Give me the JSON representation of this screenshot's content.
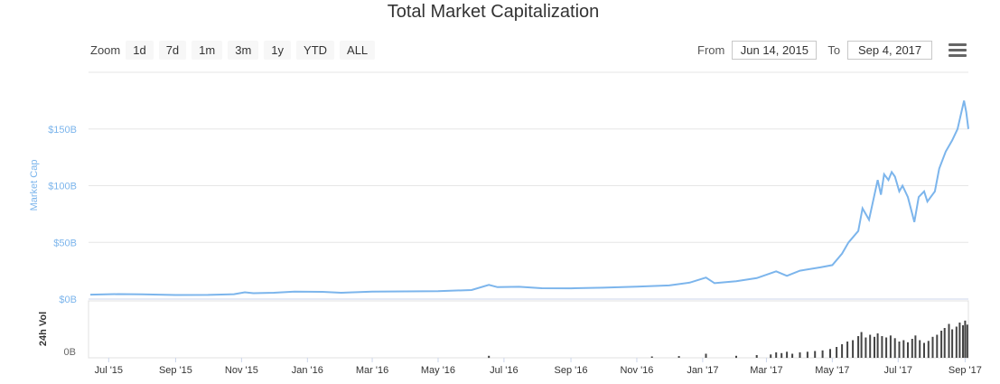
{
  "header": {
    "title": "Total Market Capitalization"
  },
  "zoom": {
    "label": "Zoom",
    "buttons": [
      "1d",
      "7d",
      "1m",
      "3m",
      "1y",
      "YTD",
      "ALL"
    ]
  },
  "range": {
    "from_label": "From",
    "from_value": "Jun 14, 2015",
    "to_label": "To",
    "to_value": "Sep 4, 2017"
  },
  "menu": {
    "icon": "hamburger-menu-icon"
  },
  "colors": {
    "line": "#7cb5ec",
    "volume": "#444444",
    "grid": "#e6e6e6",
    "yaxis_label": "#7cb5ec"
  },
  "chart_data": {
    "type": "line",
    "title": "Total Market Capitalization",
    "ylabel": "Market Cap",
    "ylim": [
      0,
      200
    ],
    "yticks": [
      {
        "value": 0,
        "label": "$0B"
      },
      {
        "value": 50,
        "label": "$50B"
      },
      {
        "value": 100,
        "label": "$100B"
      },
      {
        "value": 150,
        "label": "$150B"
      }
    ],
    "xlim": [
      "2015-06-14",
      "2017-09-04"
    ],
    "xticks": [
      {
        "date": "2015-07-01",
        "label": "Jul '15"
      },
      {
        "date": "2015-09-01",
        "label": "Sep '15"
      },
      {
        "date": "2015-11-01",
        "label": "Nov '15"
      },
      {
        "date": "2016-01-01",
        "label": "Jan '16"
      },
      {
        "date": "2016-03-01",
        "label": "Mar '16"
      },
      {
        "date": "2016-05-01",
        "label": "May '16"
      },
      {
        "date": "2016-07-01",
        "label": "Jul '16"
      },
      {
        "date": "2016-09-01",
        "label": "Sep '16"
      },
      {
        "date": "2016-11-01",
        "label": "Nov '16"
      },
      {
        "date": "2017-01-01",
        "label": "Jan '17"
      },
      {
        "date": "2017-03-01",
        "label": "Mar '17"
      },
      {
        "date": "2017-05-01",
        "label": "May '17"
      },
      {
        "date": "2017-07-01",
        "label": "Jul '17"
      },
      {
        "date": "2017-09-01",
        "label": "Sep '17"
      }
    ],
    "series": [
      {
        "values": [
          [
            "2015-06-14",
            3.9
          ],
          [
            "2015-07-10",
            4.4
          ],
          [
            "2015-08-01",
            4.2
          ],
          [
            "2015-09-01",
            3.6
          ],
          [
            "2015-10-01",
            3.7
          ],
          [
            "2015-10-25",
            4.3
          ],
          [
            "2015-11-04",
            6.0
          ],
          [
            "2015-11-12",
            5.2
          ],
          [
            "2015-12-01",
            5.6
          ],
          [
            "2015-12-20",
            6.5
          ],
          [
            "2016-01-15",
            6.4
          ],
          [
            "2016-02-01",
            5.6
          ],
          [
            "2016-03-01",
            6.6
          ],
          [
            "2016-04-01",
            6.8
          ],
          [
            "2016-05-01",
            7.0
          ],
          [
            "2016-06-01",
            8.0
          ],
          [
            "2016-06-17",
            12.5
          ],
          [
            "2016-06-25",
            10.5
          ],
          [
            "2016-07-15",
            10.8
          ],
          [
            "2016-08-05",
            9.6
          ],
          [
            "2016-09-01",
            9.5
          ],
          [
            "2016-10-01",
            10.0
          ],
          [
            "2016-11-01",
            11.0
          ],
          [
            "2016-12-01",
            12.0
          ],
          [
            "2016-12-20",
            14.5
          ],
          [
            "2017-01-04",
            19.0
          ],
          [
            "2017-01-12",
            14.0
          ],
          [
            "2017-02-01",
            15.8
          ],
          [
            "2017-02-20",
            18.5
          ],
          [
            "2017-03-10",
            24.5
          ],
          [
            "2017-03-20",
            20.5
          ],
          [
            "2017-04-01",
            25.0
          ],
          [
            "2017-04-20",
            28.0
          ],
          [
            "2017-05-01",
            30.0
          ],
          [
            "2017-05-10",
            40.0
          ],
          [
            "2017-05-16",
            50.0
          ],
          [
            "2017-05-25",
            60.0
          ],
          [
            "2017-05-29",
            80.0
          ],
          [
            "2017-06-01",
            75.0
          ],
          [
            "2017-06-04",
            70.0
          ],
          [
            "2017-06-12",
            105.0
          ],
          [
            "2017-06-15",
            92.0
          ],
          [
            "2017-06-18",
            110.0
          ],
          [
            "2017-06-22",
            105.0
          ],
          [
            "2017-06-25",
            112.0
          ],
          [
            "2017-06-28",
            108.0
          ],
          [
            "2017-07-02",
            95.0
          ],
          [
            "2017-07-05",
            100.0
          ],
          [
            "2017-07-10",
            90.0
          ],
          [
            "2017-07-16",
            68.0
          ],
          [
            "2017-07-20",
            90.0
          ],
          [
            "2017-07-25",
            95.0
          ],
          [
            "2017-07-28",
            86.0
          ],
          [
            "2017-08-04",
            95.0
          ],
          [
            "2017-08-08",
            115.0
          ],
          [
            "2017-08-14",
            130.0
          ],
          [
            "2017-08-20",
            140.0
          ],
          [
            "2017-08-25",
            150.0
          ],
          [
            "2017-08-31",
            175.0
          ],
          [
            "2017-09-02",
            165.0
          ],
          [
            "2017-09-04",
            150.0
          ]
        ]
      }
    ],
    "volume_panel": {
      "label": "24h Vol",
      "ytick_label": "0B",
      "ylim": [
        0,
        8
      ],
      "bars": [
        [
          "2016-06-17",
          0.3
        ],
        [
          "2016-11-15",
          0.2
        ],
        [
          "2016-12-10",
          0.25
        ],
        [
          "2017-01-04",
          0.6
        ],
        [
          "2017-02-01",
          0.3
        ],
        [
          "2017-02-20",
          0.4
        ],
        [
          "2017-03-05",
          0.5
        ],
        [
          "2017-03-10",
          0.8
        ],
        [
          "2017-03-15",
          0.7
        ],
        [
          "2017-03-20",
          0.9
        ],
        [
          "2017-03-25",
          0.6
        ],
        [
          "2017-04-01",
          0.8
        ],
        [
          "2017-04-08",
          0.9
        ],
        [
          "2017-04-15",
          1.0
        ],
        [
          "2017-04-22",
          1.1
        ],
        [
          "2017-04-29",
          1.3
        ],
        [
          "2017-05-05",
          1.6
        ],
        [
          "2017-05-10",
          2.0
        ],
        [
          "2017-05-15",
          2.4
        ],
        [
          "2017-05-20",
          2.6
        ],
        [
          "2017-05-25",
          3.2
        ],
        [
          "2017-05-28",
          3.8
        ],
        [
          "2017-06-01",
          3.0
        ],
        [
          "2017-06-05",
          3.4
        ],
        [
          "2017-06-09",
          3.1
        ],
        [
          "2017-06-12",
          3.6
        ],
        [
          "2017-06-16",
          3.2
        ],
        [
          "2017-06-20",
          3.0
        ],
        [
          "2017-06-24",
          3.3
        ],
        [
          "2017-06-28",
          2.9
        ],
        [
          "2017-07-02",
          2.4
        ],
        [
          "2017-07-06",
          2.6
        ],
        [
          "2017-07-10",
          2.3
        ],
        [
          "2017-07-14",
          2.8
        ],
        [
          "2017-07-17",
          3.3
        ],
        [
          "2017-07-21",
          2.6
        ],
        [
          "2017-07-25",
          2.2
        ],
        [
          "2017-07-29",
          2.5
        ],
        [
          "2017-08-02",
          3.1
        ],
        [
          "2017-08-06",
          3.4
        ],
        [
          "2017-08-10",
          4.0
        ],
        [
          "2017-08-13",
          4.4
        ],
        [
          "2017-08-17",
          5.0
        ],
        [
          "2017-08-20",
          4.2
        ],
        [
          "2017-08-24",
          4.6
        ],
        [
          "2017-08-27",
          5.2
        ],
        [
          "2017-08-30",
          4.8
        ],
        [
          "2017-09-01",
          5.5
        ],
        [
          "2017-09-03",
          4.9
        ]
      ]
    }
  }
}
